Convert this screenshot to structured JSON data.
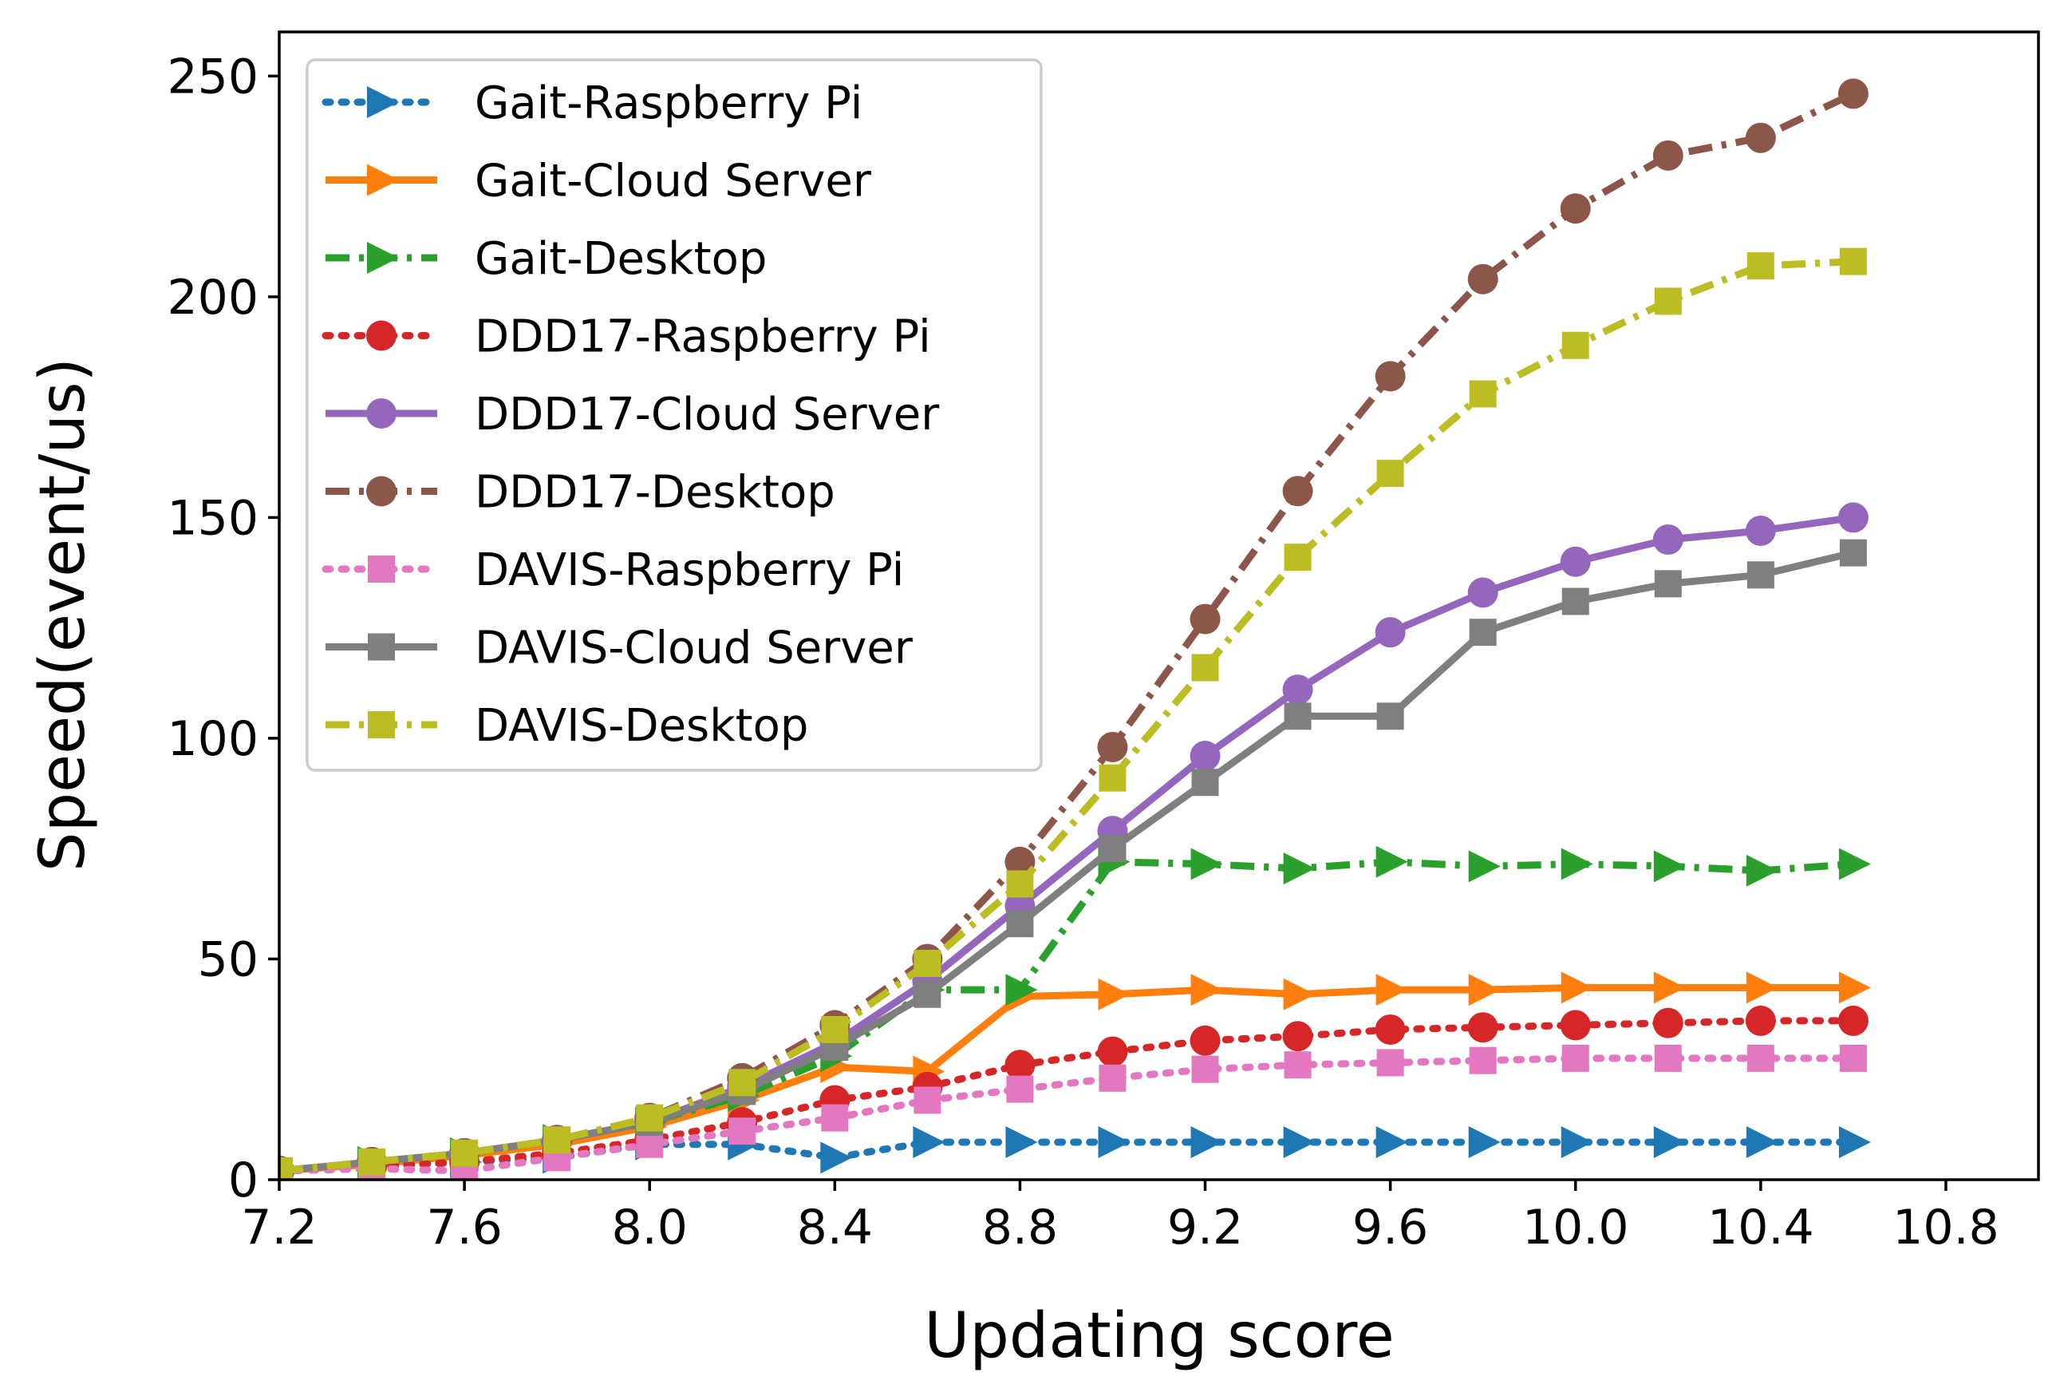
{
  "chart_data": {
    "type": "line",
    "title": "",
    "xlabel": "Updating score",
    "ylabel": "Speed(event/us)",
    "xlim": [
      7.2,
      11.0
    ],
    "ylim": [
      0,
      260
    ],
    "xticks": [
      7.2,
      7.6,
      8.0,
      8.4,
      8.8,
      9.2,
      9.6,
      10.0,
      10.4,
      10.8
    ],
    "xtick_labels": [
      "7.2",
      "7.6",
      "8.0",
      "8.4",
      "8.8",
      "9.2",
      "9.6",
      "10.0",
      "10.4",
      "10.8"
    ],
    "yticks": [
      0,
      50,
      100,
      150,
      200,
      250
    ],
    "ytick_labels": [
      "0",
      "50",
      "100",
      "150",
      "200",
      "250"
    ],
    "grid": false,
    "legend_position": "top-left",
    "x": [
      7.2,
      7.4,
      7.6,
      7.8,
      8.0,
      8.2,
      8.4,
      8.6,
      8.8,
      9.0,
      9.2,
      9.4,
      9.6,
      9.8,
      10.0,
      10.2,
      10.4,
      10.6
    ],
    "series": [
      {
        "name": "Gait-Raspberry Pi",
        "color": "#1f77b4",
        "marker": "triangle-right",
        "dash": "dotted",
        "values": [
          2,
          3,
          4,
          5,
          8,
          8,
          5,
          8.5,
          8.5,
          8.5,
          8.5,
          8.5,
          8.5,
          8.5,
          8.5,
          8.5,
          8.5,
          8.5
        ]
      },
      {
        "name": "Gait-Cloud Server",
        "color": "#ff7f0e",
        "marker": "triangle-right",
        "dash": "solid",
        "values": [
          2,
          3.5,
          5.5,
          8,
          12,
          18,
          25.5,
          24.5,
          41.5,
          42,
          43,
          42,
          43,
          43,
          43.5,
          43.5,
          43.5,
          43.5
        ]
      },
      {
        "name": "Gait-Desktop",
        "color": "#2ca02c",
        "marker": "triangle-right",
        "dash": "dashdot",
        "values": [
          2,
          4,
          6,
          9,
          13,
          19,
          28,
          43,
          43,
          72,
          71.5,
          70.5,
          72,
          71,
          71.5,
          71,
          70,
          71.5
        ]
      },
      {
        "name": "DDD17-Raspberry Pi",
        "color": "#d62728",
        "marker": "circle",
        "dash": "dotted",
        "values": [
          2,
          3,
          4,
          6,
          9,
          13,
          18,
          21,
          26,
          29,
          31.5,
          32.5,
          34,
          34.5,
          35,
          35.5,
          36,
          36
        ]
      },
      {
        "name": "DDD17-Cloud Server",
        "color": "#9467bd",
        "marker": "circle",
        "dash": "solid",
        "values": [
          2,
          4,
          6,
          9,
          13,
          21,
          31,
          45,
          62,
          79,
          96,
          111,
          124,
          133,
          140,
          145,
          147,
          150
        ]
      },
      {
        "name": "DDD17-Desktop",
        "color": "#8c564b",
        "marker": "circle",
        "dash": "dashdot",
        "values": [
          2,
          4,
          6,
          9,
          14,
          23,
          35,
          50,
          72,
          98,
          127,
          156,
          182,
          204,
          220,
          232,
          236,
          246
        ]
      },
      {
        "name": "DAVIS-Raspberry Pi",
        "color": "#e377c2",
        "marker": "square",
        "dash": "dotted",
        "values": [
          2,
          2.5,
          2,
          5,
          8,
          11,
          14,
          18,
          20.5,
          23,
          25,
          26,
          26.5,
          27,
          27.5,
          27.5,
          27.5,
          27.5
        ]
      },
      {
        "name": "DAVIS-Cloud Server",
        "color": "#7f7f7f",
        "marker": "square",
        "dash": "solid",
        "values": [
          2,
          4,
          6,
          9,
          13,
          20,
          30,
          42,
          58,
          75,
          90,
          105,
          105,
          124,
          131,
          135,
          137,
          142
        ]
      },
      {
        "name": "DAVIS-Desktop",
        "color": "#bcbd22",
        "marker": "square",
        "dash": "dashdot",
        "values": [
          2,
          4,
          6,
          9,
          14,
          22,
          34,
          49,
          67,
          91,
          116,
          141,
          160,
          178,
          189,
          199,
          207,
          208
        ]
      }
    ]
  }
}
